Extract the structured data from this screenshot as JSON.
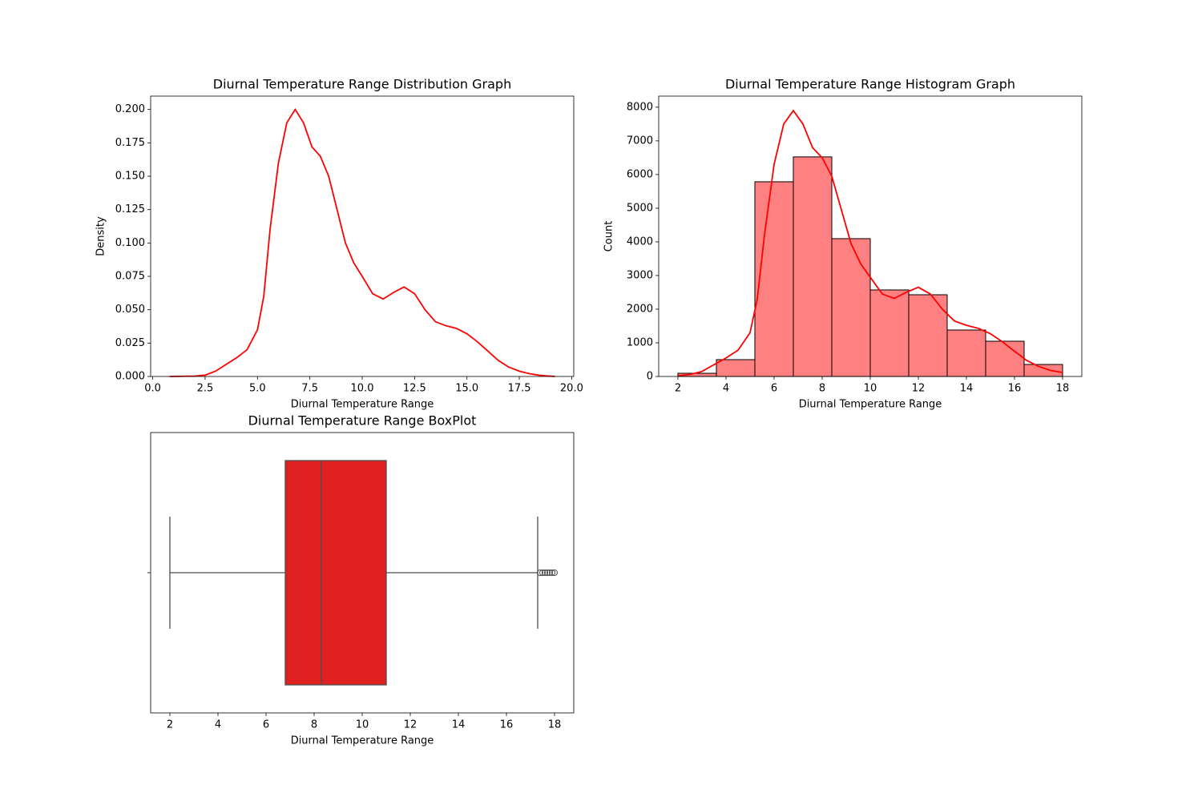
{
  "chart_data": [
    {
      "type": "line",
      "title": "Diurnal Temperature Range Distribution Graph",
      "xlabel": "Diurnal Temperature Range",
      "ylabel": "Density",
      "x": [
        0.8,
        2.0,
        2.5,
        3.0,
        3.5,
        4.0,
        4.5,
        5.0,
        5.3,
        5.6,
        6.0,
        6.4,
        6.8,
        7.2,
        7.6,
        8.0,
        8.4,
        8.8,
        9.2,
        9.6,
        10.0,
        10.5,
        11.0,
        11.5,
        12.0,
        12.5,
        13.0,
        13.5,
        14.0,
        14.5,
        15.0,
        15.5,
        16.0,
        16.5,
        17.0,
        17.5,
        18.0,
        18.5,
        19.2
      ],
      "values": [
        0,
        0.0003,
        0.001,
        0.004,
        0.009,
        0.014,
        0.02,
        0.035,
        0.06,
        0.11,
        0.16,
        0.19,
        0.2,
        0.19,
        0.172,
        0.165,
        0.15,
        0.125,
        0.1,
        0.085,
        0.075,
        0.062,
        0.058,
        0.063,
        0.067,
        0.062,
        0.05,
        0.041,
        0.038,
        0.036,
        0.032,
        0.026,
        0.019,
        0.012,
        0.007,
        0.004,
        0.002,
        0.0008,
        0
      ],
      "color": "#ff0000",
      "xlim": [
        -0.1,
        20.1
      ],
      "xticks": [
        {
          "value": 0,
          "label": "0.0"
        },
        {
          "value": 2.5,
          "label": "2.5"
        },
        {
          "value": 5,
          "label": "5.0"
        },
        {
          "value": 7.5,
          "label": "7.5"
        },
        {
          "value": 10,
          "label": "10.0"
        },
        {
          "value": 12.5,
          "label": "12.5"
        },
        {
          "value": 15,
          "label": "15.0"
        },
        {
          "value": 17.5,
          "label": "17.5"
        },
        {
          "value": 20,
          "label": "20.0"
        }
      ],
      "ylim": [
        0,
        0.21
      ],
      "yticks": [
        {
          "value": 0,
          "label": "0.000"
        },
        {
          "value": 0.025,
          "label": "0.025"
        },
        {
          "value": 0.05,
          "label": "0.050"
        },
        {
          "value": 0.075,
          "label": "0.075"
        },
        {
          "value": 0.1,
          "label": "0.100"
        },
        {
          "value": 0.125,
          "label": "0.125"
        },
        {
          "value": 0.15,
          "label": "0.150"
        },
        {
          "value": 0.175,
          "label": "0.175"
        },
        {
          "value": 0.2,
          "label": "0.200"
        }
      ]
    },
    {
      "type": "histogram",
      "title": "Diurnal Temperature Range Histogram Graph",
      "xlabel": "Diurnal Temperature Range",
      "ylabel": "Count",
      "bins": [
        2,
        3.6,
        5.2,
        6.8,
        8.4,
        10,
        11.6,
        13.2,
        14.8,
        16.4,
        18
      ],
      "values": [
        95,
        500,
        5785,
        6524,
        4095,
        2571,
        2428,
        1380,
        1047,
        357
      ],
      "color": "#ff8080",
      "edgecolor": "#000000",
      "kde": {
        "x": [
          2,
          2.5,
          3,
          3.5,
          4,
          4.5,
          5,
          5.3,
          5.6,
          6,
          6.4,
          6.8,
          7.2,
          7.6,
          8,
          8.4,
          8.8,
          9.2,
          9.6,
          10,
          10.5,
          11,
          11.5,
          12,
          12.5,
          13,
          13.5,
          14,
          14.5,
          15,
          15.5,
          16,
          16.5,
          17,
          17.5,
          18
        ],
        "values": [
          20,
          60,
          150,
          350,
          550,
          780,
          1300,
          2300,
          4200,
          6300,
          7500,
          7900,
          7500,
          6800,
          6500,
          5950,
          4950,
          3950,
          3350,
          2950,
          2450,
          2320,
          2500,
          2650,
          2450,
          2000,
          1650,
          1520,
          1430,
          1270,
          1030,
          750,
          480,
          300,
          180,
          120
        ],
        "color": "#ff0000"
      },
      "xlim": [
        1.2,
        18.8
      ],
      "xticks": [
        2,
        4,
        6,
        8,
        10,
        12,
        14,
        16,
        18
      ],
      "ylim": [
        0,
        8330
      ],
      "yticks": [
        0,
        1000,
        2000,
        3000,
        4000,
        5000,
        6000,
        7000,
        8000
      ]
    },
    {
      "type": "box",
      "title": "Diurnal Temperature Range BoxPlot",
      "xlabel": "Diurnal Temperature Range",
      "min": 2.0,
      "q1": 6.8,
      "median": 8.3,
      "q3": 11.0,
      "max": 17.3,
      "outliers": [
        17.4,
        17.5,
        17.6,
        17.7,
        17.8,
        17.9,
        18.0
      ],
      "color": "#df2020",
      "xlim": [
        1.2,
        18.8
      ],
      "xticks": [
        2,
        4,
        6,
        8,
        10,
        12,
        14,
        16,
        18
      ]
    }
  ]
}
